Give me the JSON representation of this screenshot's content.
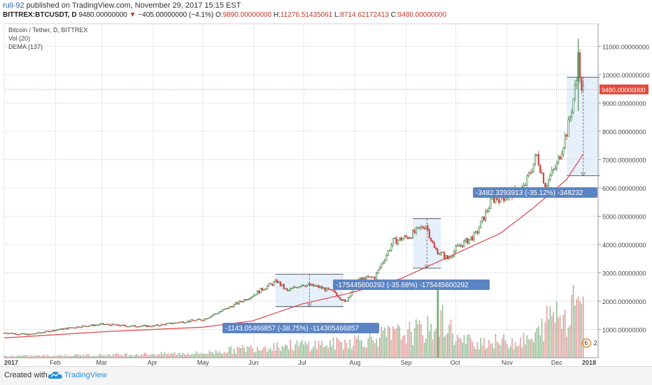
{
  "header": {
    "user": "ruli-92",
    "published": "published on TradingView.com, November 29, 2017 15:15 EST",
    "symbol": "BITTREX:BTCUSDT, D",
    "last": "9480.00000000",
    "change": "−405.00000000 (−4.1%)",
    "o_label": "O:",
    "o": "9890.00000000",
    "h_label": "H:",
    "h": "11276.51435061",
    "l_label": "L:",
    "l": "8714.62172413",
    "c_label": "C:",
    "c": "9480.00000000"
  },
  "legend": [
    "Bitcoin / Tether, D, BITTREX",
    "Vol (20)",
    "DEMA (137)"
  ],
  "footer": {
    "created": "Created with",
    "brand": "TradingView"
  },
  "colors": {
    "up": "#3a7d3a",
    "down": "#d04747",
    "dema": "#e0424a",
    "label_bg": "#5b84c4",
    "price_tag": "#e24a3b",
    "box_fill": "#d6e6f8"
  },
  "chart_data": {
    "type": "line",
    "x": [
      "2017-01",
      "2017-02",
      "2017-03",
      "2017-04",
      "2017-05",
      "2017-06",
      "2017-07",
      "2017-08",
      "2017-09",
      "2017-10",
      "2017-11",
      "2017-12"
    ],
    "x_tick_labels": [
      "2017",
      "Feb",
      "Mar",
      "Apr",
      "May",
      "Jun",
      "Jul",
      "Aug",
      "Sep",
      "Oct",
      "Nov",
      "Dec",
      "2018"
    ],
    "y_tick_labels": [
      "1000.00000000",
      "2000.00000000",
      "3000.00000000",
      "4000.00000000",
      "5000.00000000",
      "6000.00000000",
      "7000.00000000",
      "8000.00000000",
      "9000.00000000",
      "10000.00000000",
      "11000.00000000"
    ],
    "ylim": [
      0,
      11800
    ],
    "price": [
      [
        0,
        880
      ],
      [
        15,
        820
      ],
      [
        31,
        980
      ],
      [
        45,
        1100
      ],
      [
        59,
        1180
      ],
      [
        75,
        1120
      ],
      [
        90,
        1120
      ],
      [
        105,
        1250
      ],
      [
        120,
        1350
      ],
      [
        135,
        1750
      ],
      [
        150,
        2200
      ],
      [
        158,
        2500
      ],
      [
        165,
        2700
      ],
      [
        171,
        2350
      ],
      [
        180,
        2600
      ],
      [
        190,
        2500
      ],
      [
        200,
        2300
      ],
      [
        206,
        1950
      ],
      [
        214,
        2750
      ],
      [
        224,
        2850
      ],
      [
        235,
        4100
      ],
      [
        245,
        4300
      ],
      [
        255,
        4700
      ],
      [
        260,
        3850
      ],
      [
        268,
        3500
      ],
      [
        274,
        3900
      ],
      [
        285,
        4350
      ],
      [
        295,
        5600
      ],
      [
        304,
        5700
      ],
      [
        314,
        6000
      ],
      [
        322,
        7150
      ],
      [
        327,
        6100
      ],
      [
        334,
        6800
      ],
      [
        341,
        8200
      ],
      [
        346,
        9800
      ],
      [
        347,
        11100
      ],
      [
        348,
        9700
      ],
      [
        350,
        9480
      ]
    ],
    "series": [
      {
        "name": "DEMA (137)",
        "x": [
          0,
          60,
          120,
          150,
          180,
          210,
          240,
          270,
          300,
          320,
          340,
          350
        ],
        "values": [
          700,
          920,
          1080,
          1300,
          1900,
          2300,
          2800,
          3600,
          4400,
          5300,
          6300,
          7200
        ]
      },
      {
        "name": "Vol (20)",
        "x": [
          0,
          60,
          120,
          160,
          200,
          230,
          255,
          265,
          275,
          300,
          320,
          332,
          340,
          346,
          350
        ],
        "values": [
          40,
          70,
          110,
          280,
          330,
          520,
          650,
          900,
          400,
          380,
          420,
          1100,
          1000,
          1700,
          1200
        ]
      }
    ],
    "annotations": [
      {
        "text": "-1143.05466857 (-38.75%) -114305466857",
        "from": 2950,
        "to": 1807
      },
      {
        "text": "-175445600292 (-35.68%) -175445600292",
        "from": 4917,
        "to": 3163
      },
      {
        "text": "-3482.3293913 (-35.12%) -348232",
        "from": 9915,
        "to": 6433
      }
    ],
    "last_price_label": "9480.00000000",
    "last_price": 9480,
    "volume_badge": [
      "6",
      "2"
    ]
  }
}
